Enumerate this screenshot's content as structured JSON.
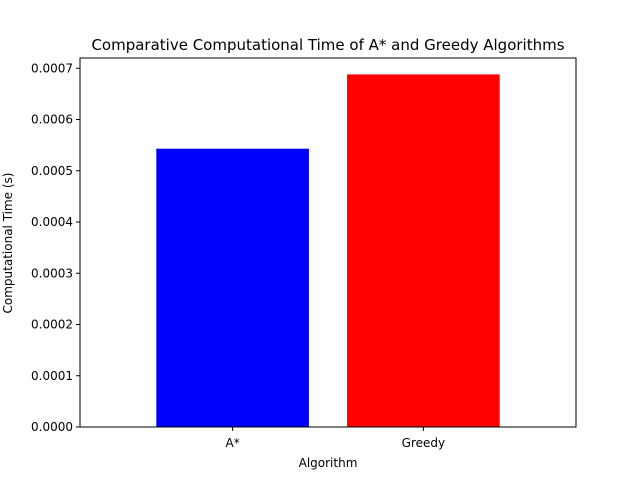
{
  "chart_data": {
    "type": "bar",
    "title": "Comparative Computational Time of A* and Greedy Algorithms",
    "xlabel": "Algorithm",
    "ylabel": "Computational Time (s)",
    "categories": [
      "A*",
      "Greedy"
    ],
    "values": [
      0.000543,
      0.000688
    ],
    "bar_colors": [
      "#0000ff",
      "#ff0000"
    ],
    "ylim": [
      0,
      0.00072
    ],
    "yticks": [
      0,
      0.0001,
      0.0002,
      0.0003,
      0.0004,
      0.0005,
      0.0006,
      0.0007
    ],
    "ytick_labels": [
      "0.0000",
      "0.0001",
      "0.0002",
      "0.0003",
      "0.0004",
      "0.0005",
      "0.0006",
      "0.0007"
    ],
    "grid": false,
    "legend": "none"
  }
}
